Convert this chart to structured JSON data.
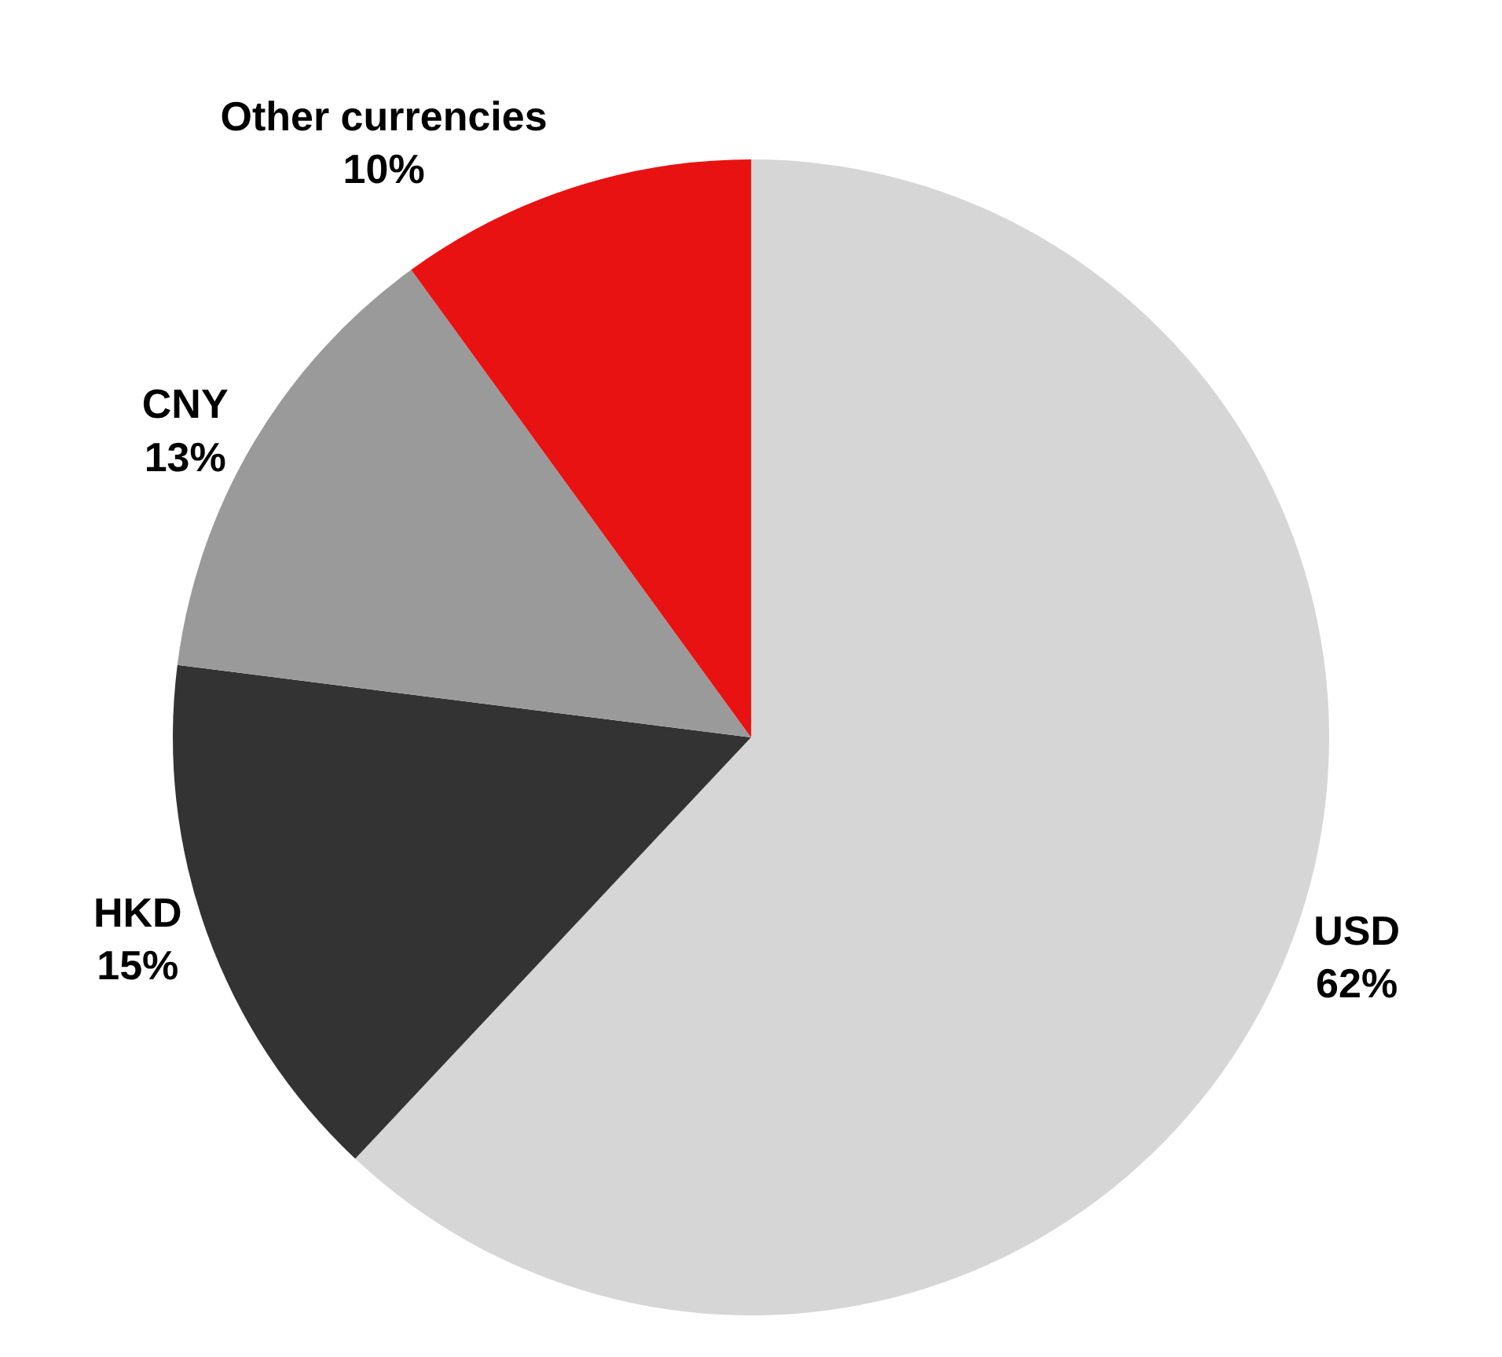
{
  "chart_data": {
    "type": "pie",
    "categories": [
      "USD",
      "HKD",
      "CNY",
      "Other currencies"
    ],
    "values": [
      62,
      15,
      13,
      10
    ],
    "value_labels": [
      "62%",
      "15%",
      "13%",
      "10%"
    ],
    "colors": [
      "#d6d6d6",
      "#333333",
      "#9a9a9a",
      "#e81212"
    ],
    "legend": false
  }
}
